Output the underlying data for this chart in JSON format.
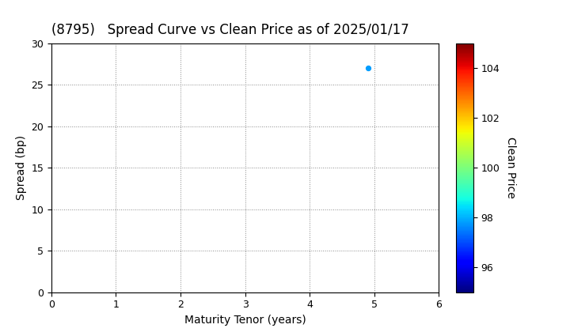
{
  "title": "(8795)   Spread Curve vs Clean Price as of 2025/01/17",
  "xlabel": "Maturity Tenor (years)",
  "ylabel": "Spread (bp)",
  "colorbar_label": "Clean Price",
  "xlim": [
    0,
    6
  ],
  "ylim": [
    0,
    30
  ],
  "xticks": [
    0,
    1,
    2,
    3,
    4,
    5,
    6
  ],
  "yticks": [
    0,
    5,
    10,
    15,
    20,
    25,
    30
  ],
  "colorbar_vmin": 95,
  "colorbar_vmax": 105,
  "colorbar_ticks": [
    96,
    98,
    100,
    102,
    104
  ],
  "scatter_x": [
    4.9
  ],
  "scatter_y": [
    27.0
  ],
  "scatter_price": [
    97.8
  ],
  "marker_size": 18,
  "background_color": "#ffffff",
  "title_fontsize": 12,
  "axis_label_fontsize": 10,
  "tick_labelsize": 9,
  "grid_color": "#888888",
  "grid_linewidth": 0.7
}
